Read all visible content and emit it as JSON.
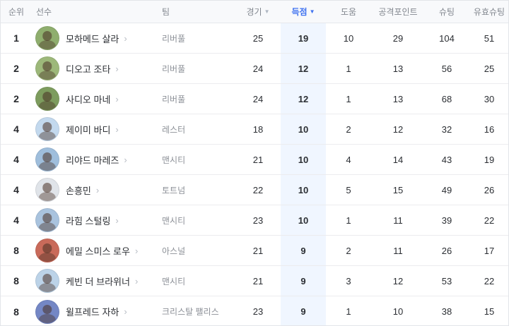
{
  "colors": {
    "accent": "#3f72f0",
    "goals_column_bg": "#f0f6ff",
    "header_bg": "#f8f9fb"
  },
  "table": {
    "header": {
      "rank": "순위",
      "player": "선수",
      "team": "팀",
      "matches": "경기",
      "goals": "득점",
      "assists": "도움",
      "points": "공격포인트",
      "shots": "슈팅",
      "sot": "유효슈팅",
      "sort_icon": "▼",
      "chevron_icon": "›"
    },
    "rows": [
      {
        "rank": "1",
        "player": "모하메드 살라",
        "team": "리버풀",
        "matches": "25",
        "goals": "19",
        "assists": "10",
        "points": "29",
        "shots": "104",
        "sot": "51",
        "avatar": "#8fae6e"
      },
      {
        "rank": "2",
        "player": "디오고 조타",
        "team": "리버풀",
        "matches": "24",
        "goals": "12",
        "assists": "1",
        "points": "13",
        "shots": "56",
        "sot": "25",
        "avatar": "#9db87a"
      },
      {
        "rank": "2",
        "player": "사디오 마네",
        "team": "리버풀",
        "matches": "24",
        "goals": "12",
        "assists": "1",
        "points": "13",
        "shots": "68",
        "sot": "30",
        "avatar": "#7d9c5e"
      },
      {
        "rank": "4",
        "player": "제이미 바디",
        "team": "레스터",
        "matches": "18",
        "goals": "10",
        "assists": "2",
        "points": "12",
        "shots": "32",
        "sot": "16",
        "avatar": "#c3d9ee"
      },
      {
        "rank": "4",
        "player": "리야드 마레즈",
        "team": "맨시티",
        "matches": "21",
        "goals": "10",
        "assists": "4",
        "points": "14",
        "shots": "43",
        "sot": "19",
        "avatar": "#9fbedc"
      },
      {
        "rank": "4",
        "player": "손흥민",
        "team": "토트넘",
        "matches": "22",
        "goals": "10",
        "assists": "5",
        "points": "15",
        "shots": "49",
        "sot": "26",
        "avatar": "#e0e4e9"
      },
      {
        "rank": "4",
        "player": "라힘 스털링",
        "team": "맨시티",
        "matches": "23",
        "goals": "10",
        "assists": "1",
        "points": "11",
        "shots": "39",
        "sot": "22",
        "avatar": "#a9c3de"
      },
      {
        "rank": "8",
        "player": "에밀 스미스 로우",
        "team": "아스널",
        "matches": "21",
        "goals": "9",
        "assists": "2",
        "points": "11",
        "shots": "26",
        "sot": "17",
        "avatar": "#c96a5a"
      },
      {
        "rank": "8",
        "player": "케빈 더 브라위너",
        "team": "맨시티",
        "matches": "21",
        "goals": "9",
        "assists": "3",
        "points": "12",
        "shots": "53",
        "sot": "22",
        "avatar": "#bcd3e8"
      },
      {
        "rank": "8",
        "player": "윌프레드 자하",
        "team": "크리스탈 팰리스",
        "matches": "23",
        "goals": "9",
        "assists": "1",
        "points": "10",
        "shots": "38",
        "sot": "15",
        "avatar": "#7487c5"
      }
    ]
  }
}
